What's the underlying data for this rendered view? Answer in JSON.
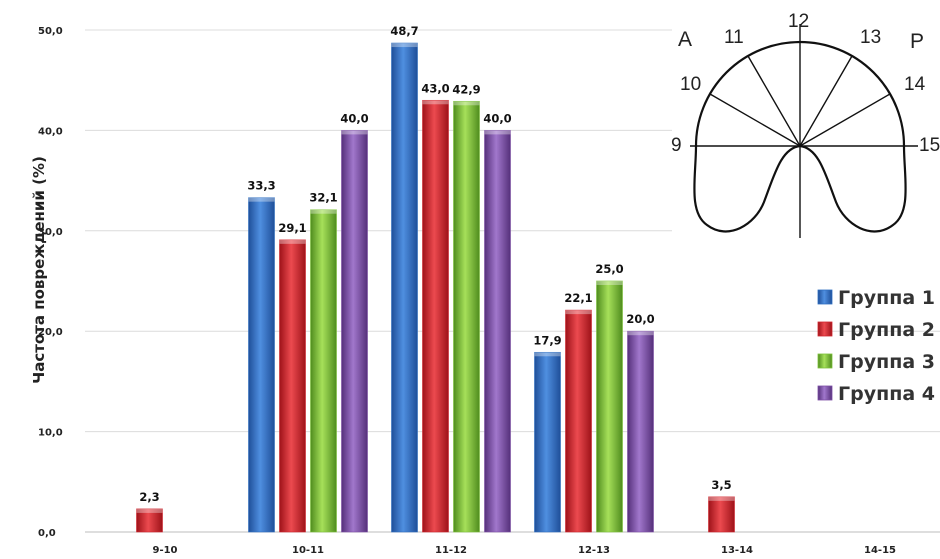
{
  "chart_data": {
    "type": "bar",
    "ylabel": "Частота повреждений (%)",
    "ylim": [
      0,
      50
    ],
    "yticks": [
      "0,0",
      "10,0",
      "20,0",
      "30,0",
      "40,0",
      "50,0"
    ],
    "grid": true,
    "legend_position": "right",
    "categories": [
      "9-10",
      "10-11",
      "11-12",
      "12-13",
      "13-14",
      "14-15"
    ],
    "series": [
      {
        "name": "Группа 1",
        "color": "#2f6fc0",
        "values": [
          null,
          33.3,
          48.7,
          17.9,
          null,
          null
        ],
        "labels": [
          "",
          "33,3",
          "48,7",
          "17,9",
          "",
          ""
        ]
      },
      {
        "name": "Группа 2",
        "color": "#d1262e",
        "values": [
          2.3,
          29.1,
          43.0,
          22.1,
          3.5,
          null
        ],
        "labels": [
          "2,3",
          "29,1",
          "43,0",
          "22,1",
          "3,5",
          ""
        ]
      },
      {
        "name": "Группа 3",
        "color": "#7ec23a",
        "values": [
          null,
          32.1,
          42.9,
          25.0,
          null,
          null
        ],
        "labels": [
          "",
          "32,1",
          "42,9",
          "25,0",
          "",
          ""
        ]
      },
      {
        "name": "Группа 4",
        "color": "#7d4fa6",
        "values": [
          null,
          40.0,
          40.0,
          20.0,
          null,
          null
        ],
        "labels": [
          "",
          "40,0",
          "40,0",
          "20,0",
          "",
          ""
        ]
      }
    ]
  },
  "diagram": {
    "left_letter": "A",
    "right_letter": "P",
    "sector_labels": [
      "9",
      "10",
      "11",
      "12",
      "13",
      "14",
      "15"
    ]
  }
}
